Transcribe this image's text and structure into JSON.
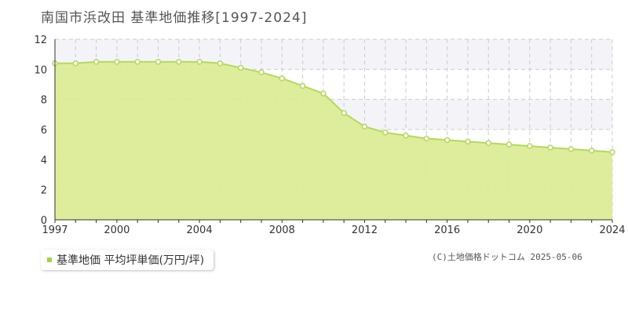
{
  "title": "南国市浜改田  基準地価推移[1997-2024]",
  "legend": {
    "label": "基準地価 平均坪単価(万円/坪)",
    "color": "#a6d14a"
  },
  "credit": "(C)土地価格ドットコム 2025-05-06",
  "colors": {
    "fill": "#dcec96",
    "line": "#b5d85c",
    "marker_fill": "#ffffff",
    "grid": "#cccccc",
    "band": "#f4f4f8"
  },
  "chart_data": {
    "type": "area",
    "x": [
      1997,
      1998,
      1999,
      2000,
      2001,
      2002,
      2003,
      2004,
      2005,
      2006,
      2007,
      2008,
      2009,
      2010,
      2011,
      2012,
      2013,
      2014,
      2015,
      2016,
      2017,
      2018,
      2019,
      2020,
      2021,
      2022,
      2023,
      2024
    ],
    "values": [
      10.4,
      10.4,
      10.5,
      10.5,
      10.5,
      10.5,
      10.5,
      10.5,
      10.4,
      10.1,
      9.8,
      9.4,
      8.9,
      8.4,
      7.1,
      6.2,
      5.8,
      5.6,
      5.4,
      5.3,
      5.2,
      5.1,
      5.0,
      4.9,
      4.8,
      4.7,
      4.6,
      4.5
    ],
    "series_name": "基準地価 平均坪単価(万円/坪)",
    "xlim": [
      1997,
      2024
    ],
    "ylim": [
      0,
      12
    ],
    "yticks": [
      0,
      2,
      4,
      6,
      8,
      10,
      12
    ],
    "xticks": [
      1997,
      2000,
      2004,
      2008,
      2012,
      2016,
      2020,
      2024
    ],
    "grid": true
  }
}
